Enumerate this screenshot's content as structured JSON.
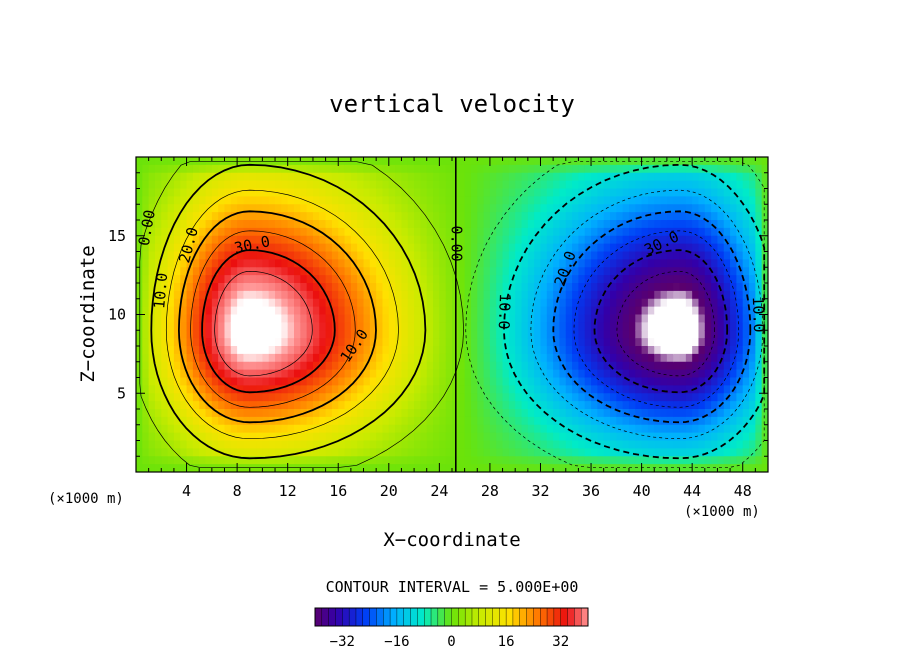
{
  "chart_data": {
    "type": "heatmap",
    "title": "vertical velocity",
    "xlabel": "X−coordinate",
    "ylabel": "Z−coordinate",
    "x_unit_left": "(×1000 m)",
    "x_unit_right": "(×1000 m)",
    "xlim": [
      0,
      50
    ],
    "ylim": [
      0,
      20
    ],
    "xticks": [
      4,
      8,
      12,
      16,
      20,
      24,
      28,
      32,
      36,
      40,
      44,
      48
    ],
    "yticks": [
      5,
      10,
      15
    ],
    "contour_interval_text": "CONTOUR INTERVAL = 5.000E+00",
    "colorbar_ticks": [
      -32,
      -16,
      0,
      16,
      32
    ],
    "colorbar_range": [
      -40,
      40
    ],
    "contour_labels": [
      "0.00",
      "10.0",
      "20.0",
      "30.0",
      "10.0",
      "0.00",
      "10.0",
      "20.0",
      "30.0",
      "10.0"
    ],
    "cells": [
      {
        "center_x": 9,
        "center_z": 9,
        "peak": 42,
        "sign": "positive"
      },
      {
        "center_x": 43,
        "center_z": 9,
        "peak": -42,
        "sign": "negative"
      }
    ],
    "grid": false
  }
}
